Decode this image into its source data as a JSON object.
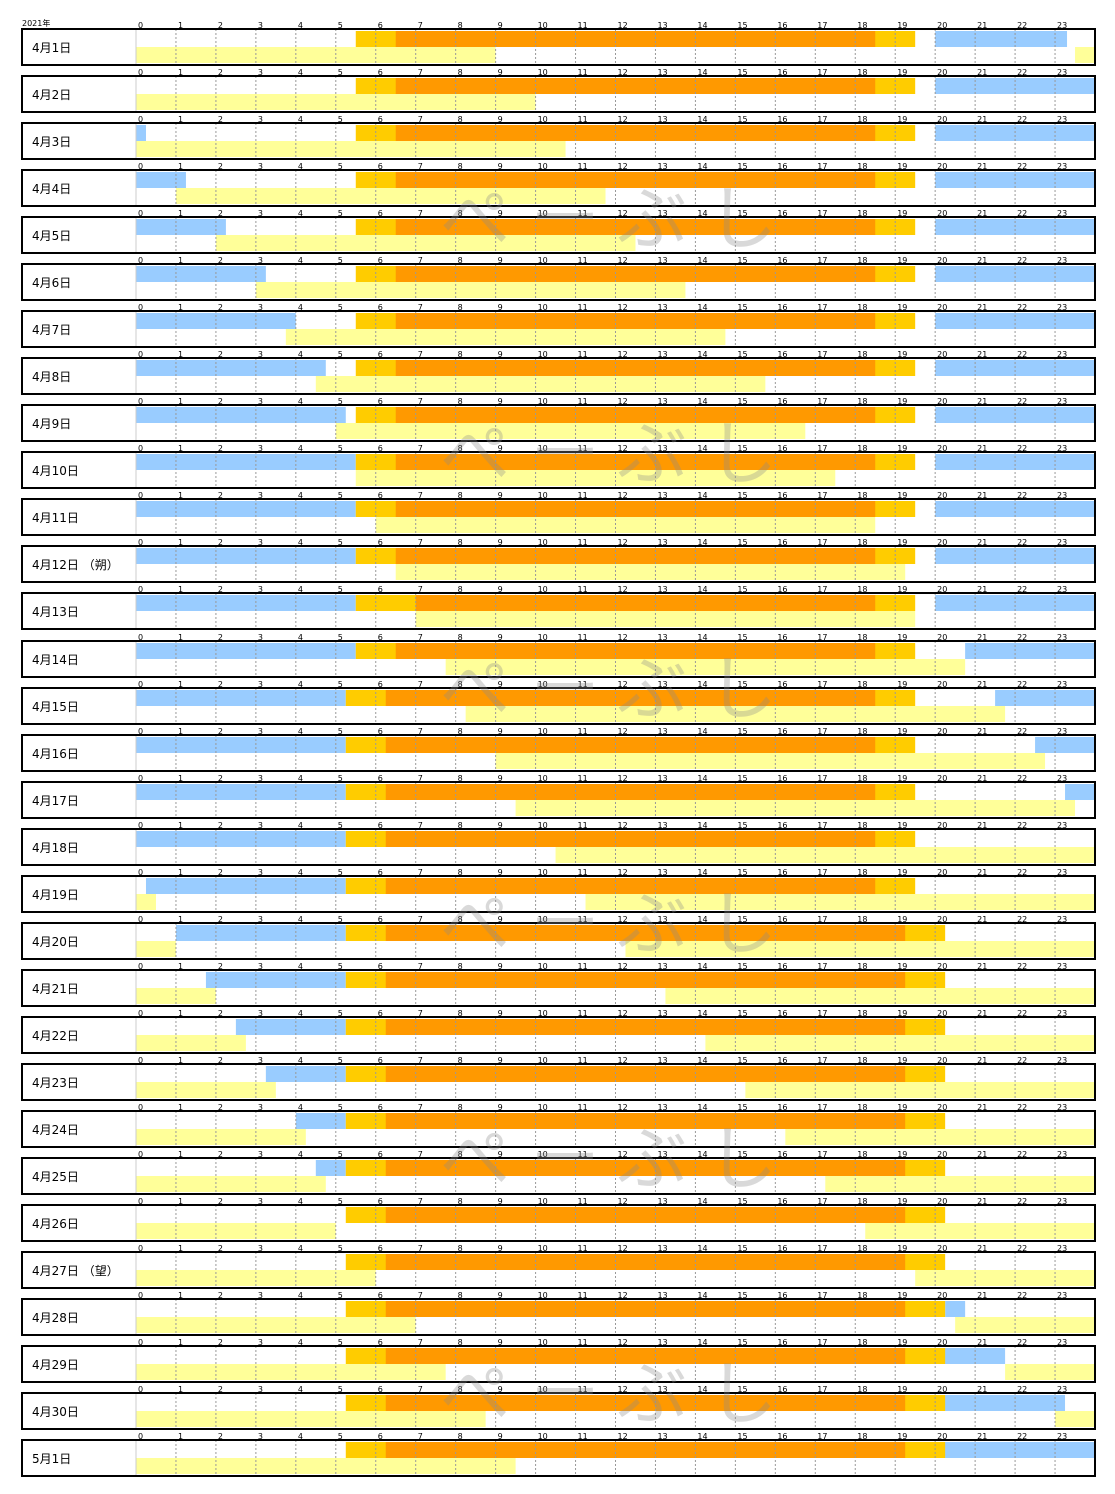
{
  "header": {
    "year": "2021年"
  },
  "watermark": "ぺーぶし",
  "chart_data": {
    "type": "timeline",
    "x_unit": "hour",
    "xlim": [
      0,
      24
    ],
    "hour_ticks": [
      "0",
      "1",
      "2",
      "3",
      "4",
      "5",
      "6",
      "7",
      "8",
      "9",
      "10",
      "11",
      "12",
      "13",
      "14",
      "15",
      "16",
      "17",
      "18",
      "19",
      "20",
      "21",
      "22",
      "23"
    ],
    "colors": {
      "sun_twilight": "#FFCC00",
      "sun_up": "#FF9900",
      "moon_night": "#99CCFF",
      "moon_day": "#FFFF99",
      "grid": "#999999",
      "border": "#000000"
    },
    "rows": [
      {
        "label": "4月1日",
        "twilight": [
          5.5,
          19.5
        ],
        "sun": [
          6.5,
          18.5
        ],
        "moon_night": [
          [
            20,
            23.3
          ]
        ],
        "moon_day": [
          [
            0,
            9
          ],
          [
            23.5,
            24
          ]
        ]
      },
      {
        "label": "4月2日",
        "twilight": [
          5.5,
          19.5
        ],
        "sun": [
          6.5,
          18.5
        ],
        "moon_night": [
          [
            20,
            24
          ]
        ],
        "moon_day": [
          [
            0,
            10
          ]
        ]
      },
      {
        "label": "4月3日",
        "twilight": [
          5.5,
          19.5
        ],
        "sun": [
          6.5,
          18.5
        ],
        "moon_night": [
          [
            0,
            0.25
          ],
          [
            20,
            24
          ]
        ],
        "moon_day": [
          [
            0,
            10.75
          ]
        ]
      },
      {
        "label": "4月4日",
        "twilight": [
          5.5,
          19.5
        ],
        "sun": [
          6.5,
          18.5
        ],
        "moon_night": [
          [
            0,
            1.25
          ],
          [
            20,
            24
          ]
        ],
        "moon_day": [
          [
            1,
            11.75
          ]
        ]
      },
      {
        "label": "4月5日",
        "twilight": [
          5.5,
          19.5
        ],
        "sun": [
          6.5,
          18.5
        ],
        "moon_night": [
          [
            0,
            2.25
          ],
          [
            20,
            24
          ]
        ],
        "moon_day": [
          [
            2,
            12.5
          ]
        ]
      },
      {
        "label": "4月6日",
        "twilight": [
          5.5,
          19.5
        ],
        "sun": [
          6.5,
          18.5
        ],
        "moon_night": [
          [
            0,
            3.25
          ],
          [
            20,
            24
          ]
        ],
        "moon_day": [
          [
            3,
            13.75
          ]
        ]
      },
      {
        "label": "4月7日",
        "twilight": [
          5.5,
          19.5
        ],
        "sun": [
          6.5,
          18.5
        ],
        "moon_night": [
          [
            0,
            4
          ],
          [
            20,
            24
          ]
        ],
        "moon_day": [
          [
            3.75,
            14.75
          ]
        ]
      },
      {
        "label": "4月8日",
        "twilight": [
          5.5,
          19.5
        ],
        "sun": [
          6.5,
          18.5
        ],
        "moon_night": [
          [
            0,
            4.75
          ],
          [
            20,
            24
          ]
        ],
        "moon_day": [
          [
            4.5,
            15.75
          ]
        ]
      },
      {
        "label": "4月9日",
        "twilight": [
          5.5,
          19.5
        ],
        "sun": [
          6.5,
          18.5
        ],
        "moon_night": [
          [
            0,
            5.25
          ],
          [
            20,
            24
          ]
        ],
        "moon_day": [
          [
            5,
            16.75
          ]
        ]
      },
      {
        "label": "4月10日",
        "twilight": [
          5.5,
          19.5
        ],
        "sun": [
          6.5,
          18.5
        ],
        "moon_night": [
          [
            0,
            5.5
          ],
          [
            20,
            24
          ]
        ],
        "moon_day": [
          [
            5.5,
            17.5
          ]
        ]
      },
      {
        "label": "4月11日",
        "twilight": [
          5.5,
          19.5
        ],
        "sun": [
          6.5,
          18.5
        ],
        "moon_night": [
          [
            0,
            5.5
          ],
          [
            20,
            24
          ]
        ],
        "moon_day": [
          [
            6,
            18.5
          ]
        ]
      },
      {
        "label": "4月12日 （朔）",
        "twilight": [
          5.5,
          19.5
        ],
        "sun": [
          6.5,
          18.5
        ],
        "moon_night": [
          [
            0,
            5.5
          ],
          [
            20,
            24
          ]
        ],
        "moon_day": [
          [
            6.5,
            19.25
          ]
        ]
      },
      {
        "label": "4月13日",
        "twilight": [
          5.5,
          19.5
        ],
        "sun": [
          7,
          18.5
        ],
        "moon_night": [
          [
            0,
            5.5
          ],
          [
            20,
            24
          ]
        ],
        "moon_day": [
          [
            7,
            19.5
          ]
        ]
      },
      {
        "label": "4月14日",
        "twilight": [
          5.5,
          19.5
        ],
        "sun": [
          6.5,
          18.5
        ],
        "moon_night": [
          [
            0,
            5.5
          ],
          [
            20.75,
            24
          ]
        ],
        "moon_day": [
          [
            7.75,
            20.75
          ]
        ]
      },
      {
        "label": "4月15日",
        "twilight": [
          5.25,
          19.5
        ],
        "sun": [
          6.25,
          18.5
        ],
        "moon_night": [
          [
            0,
            5.25
          ],
          [
            21.5,
            24
          ]
        ],
        "moon_day": [
          [
            8.25,
            21.75
          ]
        ]
      },
      {
        "label": "4月16日",
        "twilight": [
          5.25,
          19.5
        ],
        "sun": [
          6.25,
          18.5
        ],
        "moon_night": [
          [
            0,
            5.25
          ],
          [
            22.5,
            24
          ]
        ],
        "moon_day": [
          [
            9,
            22.75
          ]
        ]
      },
      {
        "label": "4月17日",
        "twilight": [
          5.25,
          19.5
        ],
        "sun": [
          6.25,
          18.5
        ],
        "moon_night": [
          [
            0,
            5.25
          ],
          [
            23.25,
            24
          ]
        ],
        "moon_day": [
          [
            9.5,
            23.5
          ]
        ]
      },
      {
        "label": "4月18日",
        "twilight": [
          5.25,
          19.5
        ],
        "sun": [
          6.25,
          18.5
        ],
        "moon_night": [
          [
            0,
            5.25
          ]
        ],
        "moon_day": [
          [
            10.5,
            24
          ]
        ]
      },
      {
        "label": "4月19日",
        "twilight": [
          5.25,
          19.5
        ],
        "sun": [
          6.25,
          18.5
        ],
        "moon_night": [
          [
            0.25,
            5.25
          ]
        ],
        "moon_day": [
          [
            0,
            0.5
          ],
          [
            11.25,
            24
          ]
        ]
      },
      {
        "label": "4月20日",
        "twilight": [
          5.25,
          20.25
        ],
        "sun": [
          6.25,
          19.25
        ],
        "moon_night": [
          [
            1,
            5.25
          ]
        ],
        "moon_day": [
          [
            0,
            1
          ],
          [
            12.25,
            24
          ]
        ]
      },
      {
        "label": "4月21日",
        "twilight": [
          5.25,
          20.25
        ],
        "sun": [
          6.25,
          19.25
        ],
        "moon_night": [
          [
            1.75,
            5.25
          ]
        ],
        "moon_day": [
          [
            0,
            2
          ],
          [
            13.25,
            24
          ]
        ]
      },
      {
        "label": "4月22日",
        "twilight": [
          5.25,
          20.25
        ],
        "sun": [
          6.25,
          19.25
        ],
        "moon_night": [
          [
            2.5,
            5.25
          ]
        ],
        "moon_day": [
          [
            0,
            2.75
          ],
          [
            14.25,
            24
          ]
        ]
      },
      {
        "label": "4月23日",
        "twilight": [
          5.25,
          20.25
        ],
        "sun": [
          6.25,
          19.25
        ],
        "moon_night": [
          [
            3.25,
            5.25
          ]
        ],
        "moon_day": [
          [
            0,
            3.5
          ],
          [
            15.25,
            24
          ]
        ]
      },
      {
        "label": "4月24日",
        "twilight": [
          5.25,
          20.25
        ],
        "sun": [
          6.25,
          19.25
        ],
        "moon_night": [
          [
            4,
            5.25
          ]
        ],
        "moon_day": [
          [
            0,
            4.25
          ],
          [
            16.25,
            24
          ]
        ]
      },
      {
        "label": "4月25日",
        "twilight": [
          5.25,
          20.25
        ],
        "sun": [
          6.25,
          19.25
        ],
        "moon_night": [
          [
            4.5,
            5.25
          ]
        ],
        "moon_day": [
          [
            0,
            4.75
          ],
          [
            17.25,
            24
          ]
        ]
      },
      {
        "label": "4月26日",
        "twilight": [
          5.25,
          20.25
        ],
        "sun": [
          6.25,
          19.25
        ],
        "moon_night": [],
        "moon_day": [
          [
            0,
            5
          ],
          [
            18.25,
            24
          ]
        ]
      },
      {
        "label": "4月27日 （望）",
        "twilight": [
          5.25,
          20.25
        ],
        "sun": [
          6.25,
          19.25
        ],
        "moon_night": [],
        "moon_day": [
          [
            0,
            6
          ],
          [
            19.5,
            24
          ]
        ]
      },
      {
        "label": "4月28日",
        "twilight": [
          5.25,
          20.25
        ],
        "sun": [
          6.25,
          19.25
        ],
        "moon_night": [
          [
            20.25,
            20.75
          ]
        ],
        "moon_day": [
          [
            0,
            7
          ],
          [
            20.5,
            24
          ]
        ]
      },
      {
        "label": "4月29日",
        "twilight": [
          5.25,
          20.25
        ],
        "sun": [
          6.25,
          19.25
        ],
        "moon_night": [
          [
            20,
            21.75
          ]
        ],
        "moon_day": [
          [
            0,
            7.75
          ],
          [
            21.75,
            24
          ]
        ]
      },
      {
        "label": "4月30日",
        "twilight": [
          5.25,
          20.25
        ],
        "sun": [
          6.25,
          19.25
        ],
        "moon_night": [
          [
            20,
            23.25
          ]
        ],
        "moon_day": [
          [
            0,
            8.75
          ],
          [
            23,
            24
          ]
        ]
      },
      {
        "label": "5月1日",
        "twilight": [
          5.25,
          20.25
        ],
        "sun": [
          6.25,
          19.25
        ],
        "moon_night": [
          [
            20,
            24
          ]
        ],
        "moon_day": [
          [
            0,
            9.5
          ]
        ]
      }
    ]
  }
}
